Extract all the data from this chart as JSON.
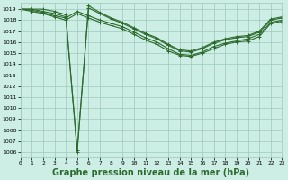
{
  "x": [
    0,
    1,
    2,
    3,
    4,
    5,
    6,
    7,
    8,
    9,
    10,
    11,
    12,
    13,
    14,
    15,
    16,
    17,
    18,
    19,
    20,
    21,
    22,
    23
  ],
  "line1": [
    1019.0,
    1019.0,
    1019.0,
    1018.8,
    1018.5,
    1006.0,
    1019.3,
    1018.7,
    1018.2,
    1017.8,
    1017.3,
    1016.8,
    1016.4,
    1015.8,
    1015.3,
    1015.2,
    1015.5,
    1016.0,
    1016.3,
    1016.5,
    1016.6,
    1017.0,
    1018.1,
    1018.3
  ],
  "line2": [
    1019.0,
    1019.0,
    1018.8,
    1018.6,
    1018.3,
    1006.2,
    1019.1,
    1018.6,
    1018.1,
    1017.7,
    1017.2,
    1016.7,
    1016.3,
    1015.7,
    1015.2,
    1015.1,
    1015.4,
    1015.9,
    1016.2,
    1016.4,
    1016.5,
    1016.9,
    1018.0,
    1018.2
  ],
  "line3": [
    1019.0,
    1018.9,
    1018.7,
    1018.4,
    1018.2,
    1018.8,
    1018.4,
    1018.0,
    1017.7,
    1017.4,
    1016.9,
    1016.4,
    1016.0,
    1015.4,
    1014.9,
    1014.8,
    1015.1,
    1015.6,
    1015.9,
    1016.1,
    1016.3,
    1016.7,
    1017.8,
    1018.0
  ],
  "line4": [
    1019.0,
    1018.8,
    1018.6,
    1018.3,
    1018.0,
    1018.6,
    1018.2,
    1017.8,
    1017.5,
    1017.2,
    1016.7,
    1016.2,
    1015.8,
    1015.2,
    1014.8,
    1014.7,
    1015.0,
    1015.4,
    1015.8,
    1016.0,
    1016.1,
    1016.5,
    1017.7,
    1017.9
  ],
  "ylim": [
    1005.5,
    1019.6
  ],
  "yticks": [
    1006,
    1007,
    1008,
    1009,
    1010,
    1011,
    1012,
    1013,
    1014,
    1015,
    1016,
    1017,
    1018,
    1019
  ],
  "xlim": [
    0,
    23
  ],
  "xticks": [
    0,
    1,
    2,
    3,
    4,
    5,
    6,
    7,
    8,
    9,
    10,
    11,
    12,
    13,
    14,
    15,
    16,
    17,
    18,
    19,
    20,
    21,
    22,
    23
  ],
  "line_color": "#2d6a2d",
  "bg_color": "#cceee4",
  "grid_color": "#9dc8bc",
  "xlabel": "Graphe pression niveau de la mer (hPa)",
  "xlabel_fontsize": 7.0,
  "marker": "+",
  "marker_size": 3.5,
  "linewidth": 0.8
}
